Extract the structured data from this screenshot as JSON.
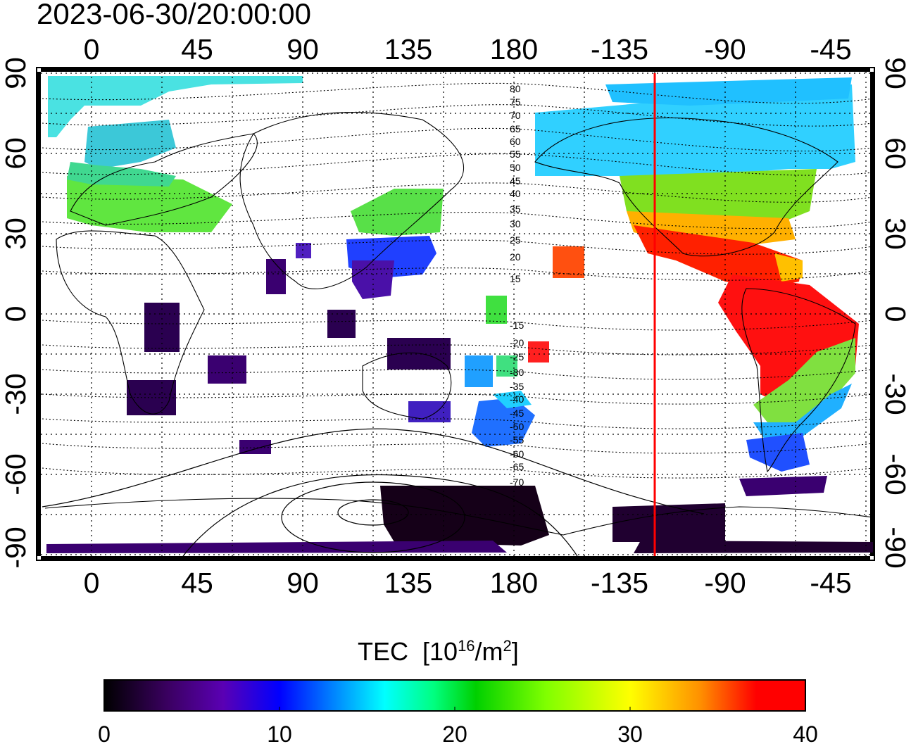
{
  "timestamp": "2023-06-30/20:00:00",
  "map": {
    "top_lon_labels": [
      "0",
      "45",
      "90",
      "135",
      "180",
      "-135",
      "-90",
      "-45"
    ],
    "bottom_lon_labels": [
      "0",
      "45",
      "90",
      "135",
      "180",
      "-135",
      "-90",
      "-45"
    ],
    "lat_labels_left": [
      "90",
      "60",
      "30",
      "0",
      "-30",
      "-60",
      "-90"
    ],
    "lat_labels_right": [
      "90",
      "60",
      "30",
      "0",
      "-30",
      "-60",
      "-90"
    ],
    "mag_contour_labels": [
      "80",
      "75",
      "70",
      "65",
      "60",
      "55",
      "50",
      "45",
      "40",
      "35",
      "30",
      "25",
      "20",
      "15",
      "-15",
      "-20",
      "-25",
      "-30",
      "-35",
      "-40",
      "-45",
      "-50",
      "-55",
      "-60",
      "-65",
      "-70"
    ],
    "marker_line_color": "#ff0000",
    "marker_line_longitude": -150
  },
  "colorbar": {
    "title_prefix": "TEC",
    "unit_open": "[10",
    "unit_exp": "16",
    "unit_mid": "/m",
    "unit_exp2": "2",
    "unit_close": "]",
    "tick_labels": [
      "0",
      "10",
      "20",
      "30",
      "40"
    ],
    "colors": [
      "#000000",
      "#3a0060",
      "#5a00b4",
      "#0000ff",
      "#0078ff",
      "#00ffff",
      "#00ff80",
      "#00d000",
      "#80ff00",
      "#ffff00",
      "#ff9000",
      "#ff0000"
    ]
  }
}
